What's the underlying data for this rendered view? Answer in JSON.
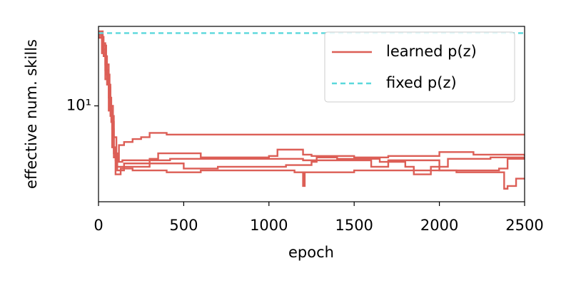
{
  "chart_data": {
    "type": "line",
    "xlabel": "epoch",
    "ylabel": "effective num. skills",
    "xlim": [
      0,
      2500
    ],
    "xticks": [
      0,
      500,
      1000,
      1500,
      2000,
      2500
    ],
    "ylim": [
      1.2,
      58
    ],
    "yticks": [
      {
        "value": 10,
        "label": "10¹"
      }
    ],
    "log_y": true,
    "legend": "upper right",
    "series": [
      {
        "name": "learned p(z)",
        "color": "#dc5e56",
        "dashed": false,
        "runs": [
          {
            "x": [
              0,
              20,
              40,
              60,
              70,
              80,
              90,
              100,
              120,
              150,
              200,
              250,
              300,
              400,
              2500
            ],
            "values": [
              50,
              40,
              25,
              15,
              9,
              6,
              3.5,
              3.0,
              4.2,
              4.5,
              4.8,
              5.0,
              5.5,
              5.3,
              5.3
            ]
          },
          {
            "x": [
              0,
              20,
              40,
              60,
              75,
              90,
              110,
              150,
              300,
              350,
              450,
              600,
              1000,
              1050,
              1200,
              1250,
              1500,
              1700,
              2000,
              2200,
              2500
            ],
            "values": [
              48,
              35,
              22,
              12,
              7,
              3.5,
              2.4,
              2.6,
              3.1,
              3.5,
              3.5,
              3.2,
              3.3,
              3.8,
              3.4,
              3.3,
              3.2,
              3.3,
              3.6,
              3.4,
              3.3
            ]
          },
          {
            "x": [
              0,
              20,
              40,
              60,
              80,
              100,
              130,
              200,
              400,
              600,
              800,
              1000,
              1150,
              1200,
              1210,
              1500,
              1800,
              2100,
              2380,
              2400,
              2450,
              2500
            ],
            "values": [
              45,
              32,
              18,
              9,
              4,
              2.2,
              2.5,
              2.4,
              2.3,
              2.4,
              2.4,
              2.4,
              2.3,
              1.7,
              2.3,
              2.4,
              2.4,
              2.3,
              1.6,
              1.7,
              2.0,
              2.0
            ]
          },
          {
            "x": [
              0,
              30,
              50,
              70,
              90,
              110,
              150,
              300,
              450,
              500,
              700,
              900,
              1100,
              1250,
              1280,
              1400,
              1550,
              1650,
              1800,
              1850,
              1950,
              2050,
              2300,
              2500
            ],
            "values": [
              46,
              30,
              16,
              8,
              3.2,
              2.6,
              2.8,
              2.8,
              2.8,
              2.5,
              2.6,
              2.6,
              2.7,
              2.9,
              3.2,
              3.1,
              3.1,
              2.9,
              2.6,
              2.2,
              2.6,
              3.1,
              3.2,
              3.1
            ]
          },
          {
            "x": [
              0,
              25,
              45,
              65,
              85,
              105,
              140,
              250,
              420,
              800,
              1200,
              1550,
              1600,
              1700,
              1950,
              2000,
              2350,
              2400,
              2500
            ],
            "values": [
              52,
              38,
              20,
              10,
              5,
              2.9,
              3.0,
              3.0,
              3.1,
              3.1,
              3.0,
              3.0,
              2.6,
              3.0,
              3.0,
              2.4,
              2.5,
              3.1,
              3.1
            ]
          }
        ]
      },
      {
        "name": "fixed p(z)",
        "color": "#5bd8dc",
        "dashed": true,
        "runs": [
          {
            "x": [
              0,
              2500
            ],
            "values": [
              50,
              50
            ]
          }
        ]
      }
    ]
  }
}
